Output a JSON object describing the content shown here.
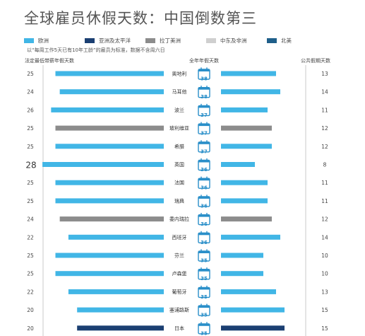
{
  "title": "全球雇员休假天数：中国倒数第三",
  "subtitle_note": "以“每周工作5天已有10年工龄”的雇员为标准，数据不含周六日",
  "colors": {
    "欧洲": "#41b6e6",
    "亚洲及太平洋": "#1b3f72",
    "拉丁美洲": "#8c8c8c",
    "中东及非洲": "#cfcfcf",
    "北美": "#1f5f8a",
    "calendar": "#2a8fc9",
    "separator": "#c8c8c8"
  },
  "legend": [
    {
      "label": "欧洲",
      "color": "#41b6e6"
    },
    {
      "label": "亚洲及太平洋",
      "color": "#1b3f72"
    },
    {
      "label": "拉丁美洲",
      "color": "#8c8c8c"
    },
    {
      "label": "中东及非洲",
      "color": "#cfcfcf"
    },
    {
      "label": "北美",
      "color": "#1f5f8a"
    }
  ],
  "chart_data": {
    "type": "bar",
    "title": "全球雇员休假天数：中国倒数第三",
    "column_headers": {
      "left": "法定最低带薪年假天数",
      "center": "全年年假天数",
      "right": "公共假期天数"
    },
    "categories": [
      "奥地利",
      "马耳他",
      "波兰",
      "玻利维亚",
      "希腊",
      "英国",
      "法国",
      "瑞典",
      "委内瑞拉",
      "西班牙",
      "芬兰",
      "卢森堡",
      "葡萄牙",
      "塞浦路斯",
      "日本"
    ],
    "regions": [
      "欧洲",
      "欧洲",
      "欧洲",
      "拉丁美洲",
      "欧洲",
      "欧洲",
      "欧洲",
      "欧洲",
      "拉丁美洲",
      "欧洲",
      "欧洲",
      "欧洲",
      "欧洲",
      "欧洲",
      "亚洲及太平洋"
    ],
    "series": [
      {
        "name": "法定最低带薪年假天数",
        "values": [
          25,
          24,
          26,
          25,
          25,
          28,
          25,
          25,
          24,
          22,
          25,
          25,
          22,
          20,
          20
        ]
      },
      {
        "name": "全年年假天数",
        "values": [
          38,
          38,
          37,
          37,
          37,
          36,
          36,
          36,
          36,
          36,
          35,
          35,
          35,
          35,
          35
        ]
      },
      {
        "name": "公共假期天数",
        "values": [
          13,
          14,
          11,
          12,
          12,
          8,
          11,
          11,
          12,
          14,
          10,
          10,
          13,
          15,
          15
        ]
      }
    ],
    "highlight": "英国"
  }
}
